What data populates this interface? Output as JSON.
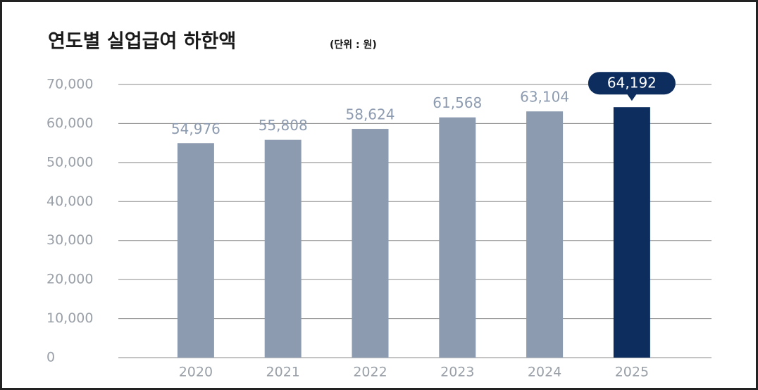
{
  "chart_data": {
    "type": "bar",
    "title": "연도별 실업급여 하한액",
    "subtitle": "(단위 : 원)",
    "categories": [
      "2020",
      "2021",
      "2022",
      "2023",
      "2024",
      "2025"
    ],
    "values": [
      54976,
      55808,
      58624,
      61568,
      63104,
      64192
    ],
    "value_labels": [
      "54,976",
      "55,808",
      "58,624",
      "61,568",
      "63,104",
      "64,192"
    ],
    "color": "#8d9bb0",
    "colors": [
      "#8d9bb0",
      "#8d9bb0",
      "#8d9bb0",
      "#8d9bb0",
      "#8d9bb0",
      "#0d2d5e"
    ],
    "ylim": [
      0,
      70000
    ],
    "yticks": [
      0,
      {
        "value": 10000,
        "label": "10,000"
      },
      {
        "value": 20000,
        "label": "20,000"
      },
      {
        "value": 30000,
        "label": "30,000"
      },
      {
        "value": 40000,
        "label": "40,000"
      },
      {
        "value": 50000,
        "label": "50,000"
      },
      {
        "value": 60000,
        "label": "60,000"
      },
      {
        "value": 70000,
        "label": "70,000"
      }
    ],
    "grid": true
  }
}
